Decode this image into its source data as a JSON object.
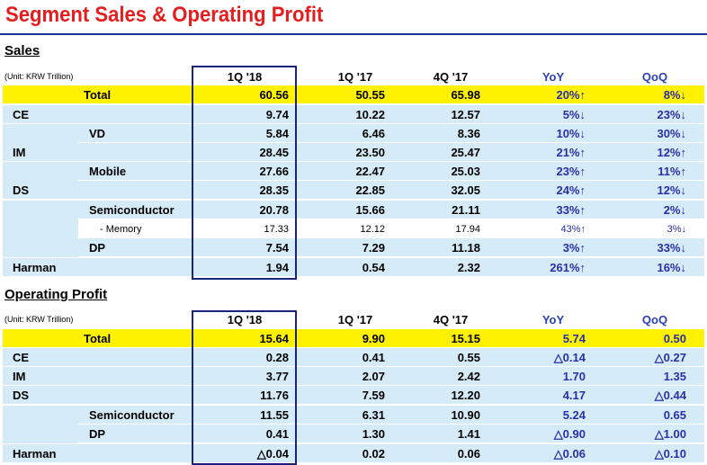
{
  "title": "Segment Sales & Operating Profit",
  "colors": {
    "title": "#e41e1e",
    "rule": "#1f2f9a",
    "yellow": "#fff200",
    "light": "#d6ebf8",
    "white": "#ffffff",
    "frame": "#1a237e",
    "change": "#2a2fa8"
  },
  "sales": {
    "heading": "Sales",
    "unit": "(Unit: KRW Trillion)",
    "columns": [
      "1Q '18",
      "1Q '17",
      "4Q '17",
      "YoY",
      "QoQ"
    ],
    "rows": [
      {
        "label": "Total",
        "v": [
          "60.56",
          "50.55",
          "65.98",
          "20%↑",
          "8%↓"
        ]
      },
      {
        "label": "CE",
        "v": [
          "9.74",
          "10.22",
          "12.57",
          "5%↓",
          "23%↓"
        ]
      },
      {
        "label": "VD",
        "v": [
          "5.84",
          "6.46",
          "8.36",
          "10%↓",
          "30%↓"
        ]
      },
      {
        "label": "IM",
        "v": [
          "28.45",
          "23.50",
          "25.47",
          "21%↑",
          "12%↑"
        ]
      },
      {
        "label": "Mobile",
        "v": [
          "27.66",
          "22.47",
          "25.03",
          "23%↑",
          "11%↑"
        ]
      },
      {
        "label": "DS",
        "v": [
          "28.35",
          "22.85",
          "32.05",
          "24%↑",
          "12%↓"
        ]
      },
      {
        "label": "Semiconductor",
        "v": [
          "20.78",
          "15.66",
          "21.11",
          "33%↑",
          "2%↓"
        ]
      },
      {
        "label": "- Memory",
        "v": [
          "17.33",
          "12.12",
          "17.94",
          "43%↑",
          "3%↓"
        ]
      },
      {
        "label": "DP",
        "v": [
          "7.54",
          "7.29",
          "11.18",
          "3%↑",
          "33%↓"
        ]
      },
      {
        "label": "Harman",
        "v": [
          "1.94",
          "0.54",
          "2.32",
          "261%↑",
          "16%↓"
        ]
      }
    ]
  },
  "op": {
    "heading": "Operating Profit",
    "unit": "(Unit: KRW Trillion)",
    "columns": [
      "1Q '18",
      "1Q '17",
      "4Q '17",
      "YoY",
      "QoQ"
    ],
    "rows": [
      {
        "label": "Total",
        "v": [
          "15.64",
          "9.90",
          "15.15",
          "5.74",
          "0.50"
        ]
      },
      {
        "label": "CE",
        "v": [
          "0.28",
          "0.41",
          "0.55",
          "△0.14",
          "△0.27"
        ]
      },
      {
        "label": "IM",
        "v": [
          "3.77",
          "2.07",
          "2.42",
          "1.70",
          "1.35"
        ]
      },
      {
        "label": "DS",
        "v": [
          "11.76",
          "7.59",
          "12.20",
          "4.17",
          "△0.44"
        ]
      },
      {
        "label": "Semiconductor",
        "v": [
          "11.55",
          "6.31",
          "10.90",
          "5.24",
          "0.65"
        ]
      },
      {
        "label": "DP",
        "v": [
          "0.41",
          "1.30",
          "1.41",
          "△0.90",
          "△1.00"
        ]
      },
      {
        "label": "Harman",
        "v": [
          "△0.04",
          "0.02",
          "0.06",
          "△0.06",
          "△0.10"
        ]
      }
    ]
  }
}
